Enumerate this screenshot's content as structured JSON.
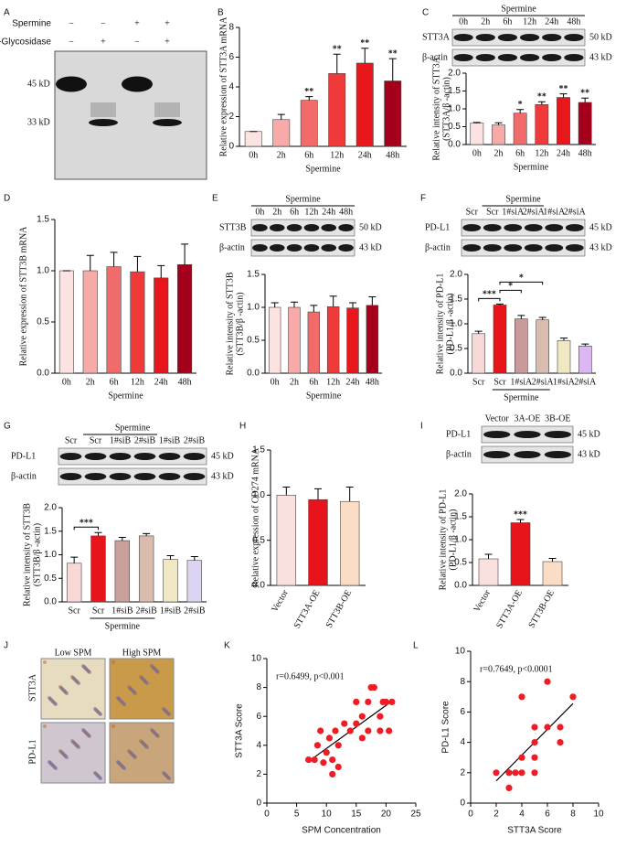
{
  "panel_labels": [
    "A",
    "B",
    "C",
    "D",
    "E",
    "F",
    "G",
    "H",
    "I",
    "J",
    "K",
    "L"
  ],
  "blot_A": {
    "row_labels": [
      "Spermine",
      "N-Glycosidase"
    ],
    "signs": [
      [
        "−",
        "−",
        "+",
        "+"
      ],
      [
        "−",
        "+",
        "−",
        "+"
      ]
    ],
    "markers": [
      "45 kD",
      "33 kD"
    ]
  },
  "blots": [
    {
      "header": "Spermine",
      "lanes": [
        "0h",
        "2h",
        "6h",
        "12h",
        "24h",
        "48h"
      ],
      "rows": [
        {
          "label": "STT3A",
          "kd": "50 kD"
        },
        {
          "label": "β-actin",
          "kd": "43 kD"
        }
      ]
    },
    {
      "header": "Spermine",
      "lanes": [
        "0h",
        "2h",
        "6h",
        "12h",
        "24h",
        "48h"
      ],
      "rows": [
        {
          "label": "STT3B",
          "kd": "50 kD"
        },
        {
          "label": "β-actin",
          "kd": "43 kD"
        }
      ]
    },
    {
      "header": "Spermine",
      "lanes": [
        "Scr",
        "Scr",
        "1#siA",
        "2#siA",
        "1#siA",
        "2#siA"
      ],
      "rows": [
        {
          "label": "PD-L1",
          "kd": "45 kD"
        },
        {
          "label": "β-actin",
          "kd": "43 kD"
        }
      ]
    },
    {
      "header": "Spermine",
      "lanes": [
        "Scr",
        "Scr",
        "1#siB",
        "2#siB",
        "1#siB",
        "2#siB"
      ],
      "rows": [
        {
          "label": "PD-L1",
          "kd": "45 kD"
        },
        {
          "label": "β-actin",
          "kd": "43 kD"
        }
      ]
    },
    {
      "lanes": [
        "Vector",
        "3A-OE",
        "3B-OE"
      ],
      "rows": [
        {
          "label": "PD-L1",
          "kd": "45 kD"
        },
        {
          "label": "β-actin",
          "kd": "43 kD"
        }
      ]
    }
  ],
  "ihc": {
    "columns": [
      "Low SPM",
      "High SPM"
    ],
    "rows": [
      "STT3A",
      "PD-L1"
    ]
  },
  "chart_data": [
    {
      "type": "bar",
      "ylabel": [
        "Relative expression of STT3A mRNA"
      ],
      "xlabel": "Spermine",
      "categories": [
        "0h",
        "2h",
        "6h",
        "12h",
        "24h",
        "48h"
      ],
      "values": [
        1,
        1.8,
        3.1,
        4.9,
        5.6,
        4.4
      ],
      "errors": [
        0,
        0.35,
        0.25,
        1.3,
        1.0,
        1.5
      ],
      "significance": [
        null,
        null,
        "**",
        "**",
        "**",
        "**"
      ],
      "colors": [
        "#fde2e2",
        "#f7aaa8",
        "#f26b6b",
        "#f03a3a",
        "#e8171c",
        "#a5001b"
      ],
      "ylim": [
        0,
        8
      ],
      "yticks": [
        0,
        2,
        4,
        6,
        8
      ]
    },
    {
      "type": "bar",
      "ylabel": [
        "Relative intensity of STT3A",
        "(STT3A/β -actin)"
      ],
      "xlabel": "Spermine",
      "categories": [
        "0h",
        "2h",
        "6h",
        "12h",
        "24h",
        "48h"
      ],
      "values": [
        0.6,
        0.55,
        0.88,
        1.12,
        1.32,
        1.18
      ],
      "errors": [
        0.02,
        0.06,
        0.1,
        0.08,
        0.1,
        0.12
      ],
      "significance": [
        null,
        null,
        "*",
        "**",
        "**",
        "**"
      ],
      "colors": [
        "#fde2e2",
        "#f7aaa8",
        "#f26b6b",
        "#f03a3a",
        "#e8171c",
        "#a5001b"
      ],
      "ylim": [
        0,
        2
      ],
      "yticks": [
        {
          "value": 0,
          "label": "0.0"
        },
        0.5,
        {
          "value": 1,
          "label": "1.0"
        },
        1.5,
        {
          "value": 2,
          "label": "2.0"
        }
      ]
    },
    {
      "type": "bar",
      "ylabel": [
        "Relative expression of STT3B mRNA"
      ],
      "xlabel": "Spermine",
      "categories": [
        "0h",
        "2h",
        "6h",
        "12h",
        "24h",
        "48h"
      ],
      "values": [
        1,
        1.0,
        1.04,
        0.99,
        0.93,
        1.06
      ],
      "errors": [
        0,
        0.15,
        0.14,
        0.15,
        0.12,
        0.2
      ],
      "colors": [
        "#fde2e2",
        "#f7aaa8",
        "#f26b6b",
        "#f03a3a",
        "#e8171c",
        "#a5001b"
      ],
      "ylim": [
        0,
        1.5
      ],
      "yticks": [
        {
          "value": 0,
          "label": "0.0"
        },
        0.5,
        {
          "value": 1,
          "label": "1.0"
        },
        1.5
      ]
    },
    {
      "type": "bar",
      "ylabel": [
        "Relative intensity of STT3B",
        "(STT3B/β -actin)"
      ],
      "xlabel": "Spermine",
      "categories": [
        "0h",
        "2h",
        "6h",
        "12h",
        "24h",
        "48h"
      ],
      "values": [
        1,
        1.0,
        0.93,
        1.01,
        0.99,
        1.03
      ],
      "errors": [
        0.07,
        0.08,
        0.1,
        0.16,
        0.08,
        0.13
      ],
      "colors": [
        "#fde2e2",
        "#f7aaa8",
        "#f26b6b",
        "#f03a3a",
        "#e8171c",
        "#a5001b"
      ],
      "ylim": [
        0,
        1.5
      ],
      "yticks": [
        {
          "value": 0,
          "label": "0.0"
        },
        0.5,
        {
          "value": 1,
          "label": "1.0"
        },
        1.5
      ]
    },
    {
      "type": "bar",
      "ylabel": [
        "Relative intensity of PD-L1",
        "(PD-L1/β -actin)"
      ],
      "xlabel": "Spermine",
      "categories": [
        "Scr",
        "Scr",
        "1#siA",
        "2#siA",
        "1#siA",
        "2#siA"
      ],
      "values": [
        0.8,
        1.38,
        1.1,
        1.08,
        0.66,
        0.55
      ],
      "errors": [
        0.05,
        0.02,
        0.07,
        0.05,
        0.05,
        0.04
      ],
      "brackets": [
        "***",
        "*",
        "*"
      ],
      "colors": [
        "#f8d7d7",
        "#e8141b",
        "#c99a9a",
        "#d8bcae",
        "#efe8c2",
        "#dcb8f2"
      ],
      "ylim": [
        0,
        2
      ],
      "yticks": [
        {
          "value": 0,
          "label": "0.0"
        },
        0.5,
        {
          "value": 1,
          "label": "1.0"
        },
        1.5,
        {
          "value": 2,
          "label": "2.0"
        }
      ]
    },
    {
      "type": "bar",
      "ylabel": [
        "Relative intensity of STT3B",
        "(STT3B/β -actin)"
      ],
      "xlabel": "Spermine",
      "categories": [
        "Scr",
        "Scr",
        "1#siB",
        "2#siB",
        "1#siB",
        "2#siB"
      ],
      "values": [
        0.82,
        1.4,
        1.3,
        1.4,
        0.9,
        0.88
      ],
      "errors": [
        0.13,
        0.07,
        0.07,
        0.05,
        0.08,
        0.08
      ],
      "brackets": [
        "***"
      ],
      "colors": [
        "#f8d7d7",
        "#e8141b",
        "#c9a09a",
        "#d8bcae",
        "#efe8c2",
        "#dcd4f2"
      ],
      "ylim": [
        0,
        2
      ],
      "yticks": [
        {
          "value": 0,
          "label": "0.0"
        },
        0.5,
        {
          "value": 1,
          "label": "1.0"
        },
        1.5,
        {
          "value": 2,
          "label": "2.0"
        }
      ]
    },
    {
      "type": "bar",
      "ylabel": [
        "Relative expression of CD274 mRNA"
      ],
      "categories": [
        "Vector",
        "STT3A-OE",
        "STT3B-OE"
      ],
      "values": [
        1,
        0.95,
        0.93
      ],
      "errors": [
        0.09,
        0.12,
        0.16
      ],
      "colors": [
        "#fbe0e0",
        "#e8141b",
        "#fbdcc4"
      ],
      "ylim": [
        0,
        1.5
      ],
      "yticks": [
        {
          "value": 0,
          "label": "0.0"
        },
        0.5,
        {
          "value": 1,
          "label": "1.0"
        },
        1.5
      ]
    },
    {
      "type": "bar",
      "ylabel": [
        "Relative intensity of PD-L1",
        "(PD-L1/β -actin)"
      ],
      "categories": [
        "Vector",
        "STT3A-OE",
        "STT3B-OE"
      ],
      "values": [
        0.58,
        1.37,
        0.52
      ],
      "errors": [
        0.1,
        0.07,
        0.07
      ],
      "significance": [
        null,
        "***",
        null
      ],
      "colors": [
        "#fbe0e0",
        "#e8141b",
        "#fbdcc4"
      ],
      "ylim": [
        0,
        2
      ],
      "yticks": [
        {
          "value": 0,
          "label": "0.0"
        },
        0.5,
        {
          "value": 1,
          "label": "1.0"
        },
        1.5,
        {
          "value": 2,
          "label": "2.0"
        }
      ]
    },
    {
      "type": "scatter",
      "annotation": "r=0.6499, p<0.001",
      "xlabel": "SPM Concentration",
      "ylabel": [
        "STT3A Score"
      ],
      "color": "#ee1c25",
      "x": [
        7,
        8,
        8.5,
        9,
        9.5,
        10,
        10.5,
        11,
        11,
        11.5,
        12,
        12,
        13,
        14,
        15,
        15,
        16,
        16,
        17,
        17,
        17.5,
        18,
        19,
        19,
        19.5,
        20,
        20.5,
        21
      ],
      "values": [
        3,
        3,
        4,
        5,
        2.8,
        3.5,
        4.5,
        2,
        3,
        5,
        2.5,
        4,
        5.5,
        5,
        5.5,
        7,
        4.5,
        6,
        5,
        7,
        8,
        8,
        6,
        5,
        7,
        7,
        5,
        7
      ],
      "xlim": [
        0,
        25
      ],
      "xticks": [
        0,
        5,
        10,
        15,
        20,
        25
      ],
      "ylim": [
        0,
        10
      ],
      "yticks": [
        0,
        2,
        4,
        6,
        8,
        10
      ]
    },
    {
      "type": "scatter",
      "annotation": "r=0.7649, p<0.0001",
      "xlabel": "STT3A Score",
      "ylabel": [
        "PD-L1 Score"
      ],
      "color": "#ee1c25",
      "x": [
        2,
        3,
        3,
        3.5,
        4,
        4,
        4,
        5,
        5,
        5,
        5,
        6,
        6,
        7,
        7,
        8
      ],
      "values": [
        2,
        1,
        2,
        2,
        3,
        7,
        2,
        3,
        4,
        2,
        5,
        5,
        8,
        4,
        5,
        7
      ],
      "xlim": [
        0,
        10
      ],
      "xticks": [
        0,
        2,
        4,
        6,
        8,
        10
      ],
      "ylim": [
        0,
        10
      ],
      "yticks": [
        0,
        2,
        4,
        6,
        8,
        10
      ]
    }
  ]
}
